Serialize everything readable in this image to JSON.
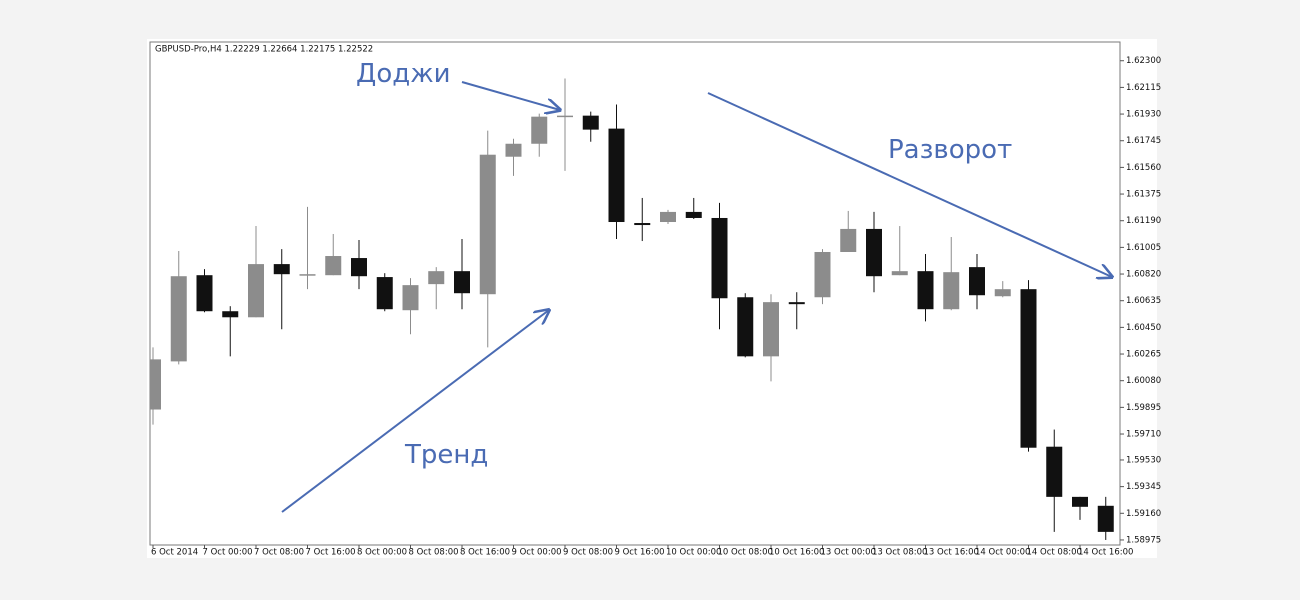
{
  "chart_data": {
    "type": "candlestick",
    "title": "GBPUSD-Pro,H4  1.22229 1.22664 1.22175 1.22522",
    "annotations": [
      "Доджи",
      "Тренд",
      "Разворот"
    ],
    "categories": [
      "6 Oct 2014",
      null,
      "7 Oct 00:00",
      null,
      "7 Oct 08:00",
      null,
      "7 Oct 16:00",
      null,
      "8 Oct 00:00",
      null,
      "8 Oct 08:00",
      null,
      "8 Oct 16:00",
      null,
      "9 Oct 00:00",
      null,
      "9 Oct 08:00",
      null,
      "9 Oct 16:00",
      null,
      "10 Oct 00:00",
      null,
      "10 Oct 08:00",
      null,
      "10 Oct 16:00",
      null,
      "13 Oct 00:00",
      null,
      "13 Oct 08:00",
      null,
      "13 Oct 16:00",
      null,
      "14 Oct 00:00",
      null,
      "14 Oct 08:00",
      null,
      "14 Oct 16:00",
      null
    ],
    "open": [
      1.5988,
      1.60214,
      1.60812,
      1.60562,
      1.6052,
      1.60889,
      1.60812,
      1.60812,
      1.60931,
      1.60799,
      1.60569,
      1.6075,
      1.6084,
      1.6068,
      1.61634,
      1.61724,
      1.61912,
      1.61919,
      1.61829,
      1.61174,
      1.61181,
      1.61251,
      1.61209,
      1.60659,
      1.60249,
      1.60625,
      1.60659,
      1.60973,
      1.61133,
      1.60812,
      1.6084,
      1.60576,
      1.60868,
      1.60666,
      1.60715,
      1.59622,
      1.59274,
      1.59212
    ],
    "high": [
      1.60311,
      1.6098,
      1.60854,
      1.60597,
      1.61153,
      1.60993,
      1.61286,
      1.61098,
      1.61056,
      1.60826,
      1.60792,
      1.60868,
      1.61063,
      1.61815,
      1.61759,
      1.61933,
      1.62177,
      1.61947,
      1.61996,
      1.61348,
      1.61265,
      1.61348,
      1.61314,
      1.60687,
      1.6068,
      1.60694,
      1.60993,
      1.61258,
      1.61251,
      1.61153,
      1.60959,
      1.61077,
      1.60959,
      1.60771,
      1.60778,
      1.59741,
      1.59274,
      1.59274
    ],
    "low": [
      1.59775,
      1.60193,
      1.60555,
      1.60249,
      1.6052,
      1.60437,
      1.60715,
      1.60812,
      1.60715,
      1.60562,
      1.60402,
      1.60576,
      1.60576,
      1.60311,
      1.61501,
      1.61634,
      1.61536,
      1.61738,
      1.61063,
      1.61049,
      1.61167,
      1.61202,
      1.60437,
      1.60242,
      1.60075,
      1.60437,
      1.60611,
      1.60973,
      1.60694,
      1.60812,
      1.60492,
      1.60569,
      1.60576,
      1.60659,
      1.59588,
      1.59031,
      1.59114,
      1.58975
    ],
    "close": [
      1.60228,
      1.60805,
      1.60562,
      1.6052,
      1.60889,
      1.60819,
      1.60819,
      1.60945,
      1.60805,
      1.60576,
      1.60743,
      1.6084,
      1.60687,
      1.61648,
      1.61724,
      1.61912,
      1.61919,
      1.61822,
      1.61181,
      1.6116,
      1.61251,
      1.61209,
      1.60652,
      1.60249,
      1.60625,
      1.60611,
      1.60973,
      1.61133,
      1.60805,
      1.6084,
      1.60576,
      1.60833,
      1.60673,
      1.60715,
      1.59615,
      1.59274,
      1.59205,
      1.59031
    ],
    "up_color": "#8c8c8c",
    "down_color": "#111111",
    "ylim": [
      1.5894,
      1.6243
    ],
    "yticks": [
      {
        "value": 1.623,
        "label": "1.62300"
      },
      1.62115,
      {
        "value": 1.6193,
        "label": "1.61930"
      },
      1.61745,
      {
        "value": 1.6156,
        "label": "1.61560"
      },
      1.61375,
      {
        "value": 1.6119,
        "label": "1.61190"
      },
      1.61005,
      {
        "value": 1.6082,
        "label": "1.60820"
      },
      1.60635,
      {
        "value": 1.6045,
        "label": "1.60450"
      },
      1.60265,
      {
        "value": 1.6008,
        "label": "1.60080"
      },
      1.59895,
      {
        "value": 1.5971,
        "label": "1.59710"
      },
      {
        "value": 1.5953,
        "label": "1.59530"
      },
      1.59345,
      {
        "value": 1.5916,
        "label": "1.59160"
      },
      1.58975
    ],
    "grid": false
  }
}
